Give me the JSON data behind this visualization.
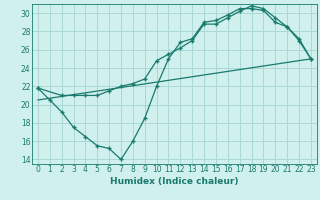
{
  "xlabel": "Humidex (Indice chaleur)",
  "background_color": "#cff0ed",
  "grid_color": "#aad8d4",
  "line_color": "#1a7a6e",
  "xlim": [
    -0.5,
    23.5
  ],
  "ylim": [
    13.5,
    31.0
  ],
  "xticks": [
    0,
    1,
    2,
    3,
    4,
    5,
    6,
    7,
    8,
    9,
    10,
    11,
    12,
    13,
    14,
    15,
    16,
    17,
    18,
    19,
    20,
    21,
    22,
    23
  ],
  "yticks": [
    14,
    16,
    18,
    20,
    22,
    24,
    26,
    28,
    30
  ],
  "line1_x": [
    0,
    1,
    2,
    3,
    4,
    5,
    6,
    7,
    8,
    9,
    10,
    11,
    12,
    13,
    14,
    15,
    16,
    17,
    18,
    19,
    20,
    21,
    22,
    23
  ],
  "line1_y": [
    21.8,
    20.5,
    19.2,
    17.5,
    16.5,
    15.5,
    15.2,
    14.0,
    16.0,
    18.5,
    22.0,
    25.0,
    26.8,
    27.2,
    29.0,
    29.2,
    29.8,
    30.5,
    30.5,
    30.3,
    29.0,
    28.5,
    27.0,
    25.0
  ],
  "line2_x": [
    0,
    2,
    3,
    4,
    5,
    6,
    7,
    8,
    9,
    10,
    11,
    12,
    13,
    14,
    15,
    16,
    17,
    18,
    19,
    20,
    21,
    22,
    23
  ],
  "line2_y": [
    21.8,
    21.0,
    21.0,
    21.0,
    21.0,
    21.5,
    22.0,
    22.3,
    22.8,
    24.8,
    25.5,
    26.2,
    27.0,
    28.8,
    28.8,
    29.5,
    30.2,
    30.8,
    30.5,
    29.5,
    28.5,
    27.2,
    25.0
  ],
  "line3_x": [
    0,
    23
  ],
  "line3_y": [
    20.5,
    25.0
  ]
}
